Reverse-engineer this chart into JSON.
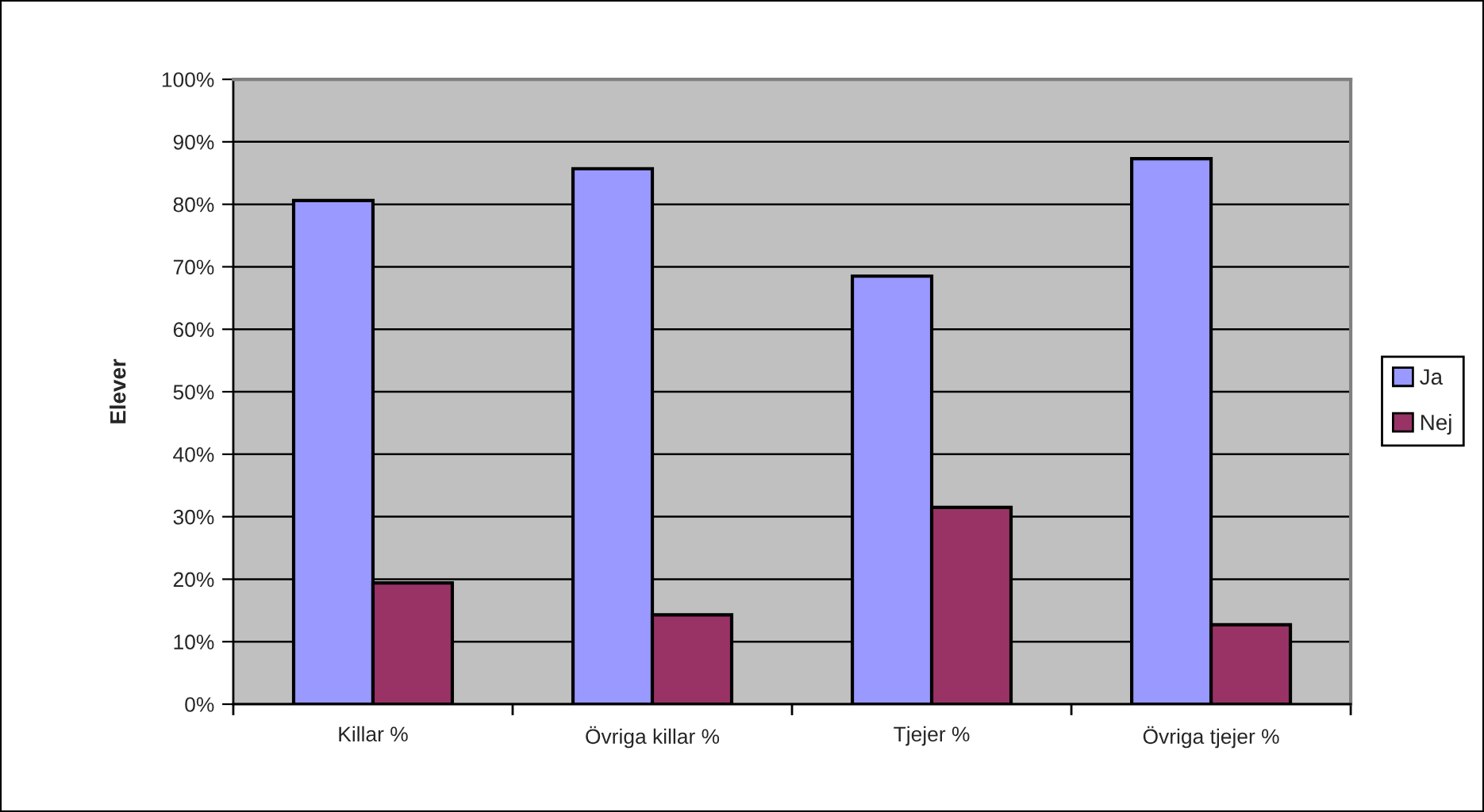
{
  "chart_data": {
    "type": "bar",
    "ylabel": "Elever",
    "categories": [
      "Killar %",
      "Övriga killar %",
      "Tjejer %",
      "Övriga tjejer %"
    ],
    "series": [
      {
        "name": "Ja",
        "color": "#9999ff",
        "values": [
          80.6,
          85.7,
          68.5,
          87.3
        ]
      },
      {
        "name": "Nej",
        "color": "#993366",
        "values": [
          19.4,
          14.3,
          31.5,
          12.7
        ]
      }
    ],
    "ylim": [
      0,
      100
    ],
    "yticks": [
      {
        "value": 0,
        "label": "0%"
      },
      {
        "value": 10,
        "label": "10%"
      },
      {
        "value": 20,
        "label": "20%"
      },
      {
        "value": 30,
        "label": "30%"
      },
      {
        "value": 40,
        "label": "40%"
      },
      {
        "value": 50,
        "label": "50%"
      },
      {
        "value": 60,
        "label": "60%"
      },
      {
        "value": 70,
        "label": "70%"
      },
      {
        "value": 80,
        "label": "80%"
      },
      {
        "value": 90,
        "label": "90%"
      },
      {
        "value": 100,
        "label": "100%"
      }
    ],
    "grid": "y",
    "legend": "right"
  }
}
